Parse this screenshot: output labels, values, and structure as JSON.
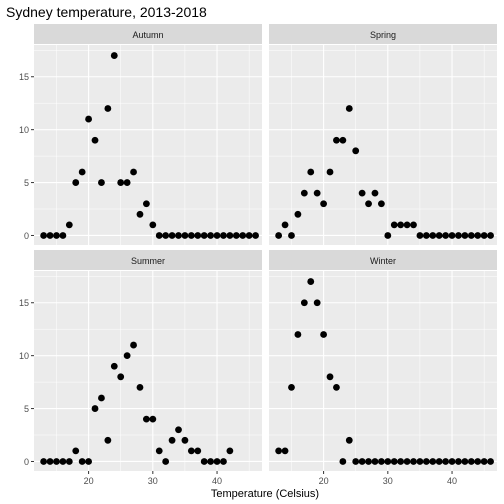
{
  "chart_data": {
    "type": "scatter",
    "title": "Sydney temperature, 2013-2018",
    "xlabel": "Temperature (Celsius)",
    "ylabel": "",
    "xlim": [
      11.5,
      47
    ],
    "ylim": [
      -0.9,
      18
    ],
    "x_ticks": [
      20,
      30,
      40
    ],
    "y_ticks": [
      0,
      5,
      10,
      15
    ],
    "grid": true,
    "layout": "facet 2x2",
    "x": [
      13,
      14,
      15,
      16,
      17,
      18,
      19,
      20,
      21,
      22,
      23,
      24,
      25,
      26,
      27,
      28,
      29,
      30,
      31,
      32,
      33,
      34,
      35,
      36,
      37,
      38,
      39,
      40,
      41,
      42,
      43,
      44,
      45,
      46
    ],
    "series": [
      {
        "name": "Autumn",
        "values": [
          0,
          0,
          0,
          0,
          1,
          5,
          6,
          11,
          9,
          5,
          12,
          17,
          5,
          5,
          6,
          2,
          3,
          1,
          0,
          0,
          0,
          0,
          0,
          0,
          0,
          0,
          0,
          0,
          0,
          0,
          0,
          0,
          0,
          0
        ]
      },
      {
        "name": "Spring",
        "values": [
          0,
          1,
          0,
          2,
          4,
          6,
          4,
          3,
          6,
          9,
          9,
          12,
          8,
          4,
          3,
          4,
          3,
          0,
          1,
          1,
          1,
          1,
          0,
          0,
          0,
          0,
          0,
          0,
          0,
          0,
          0,
          0,
          0,
          0
        ]
      },
      {
        "name": "Summer",
        "values": [
          0,
          0,
          0,
          0,
          0,
          1,
          0,
          0,
          5,
          6,
          2,
          9,
          8,
          10,
          11,
          7,
          4,
          4,
          1,
          0,
          2,
          3,
          2,
          1,
          1,
          0,
          0,
          0,
          0,
          1,
          null,
          null,
          null,
          null
        ]
      },
      {
        "name": "Winter",
        "values": [
          1,
          1,
          7,
          12,
          15,
          17,
          15,
          12,
          8,
          7,
          0,
          2,
          0,
          0,
          0,
          0,
          0,
          0,
          0,
          0,
          0,
          0,
          0,
          0,
          0,
          0,
          0,
          0,
          0,
          0,
          0,
          0,
          0,
          0
        ]
      }
    ]
  }
}
